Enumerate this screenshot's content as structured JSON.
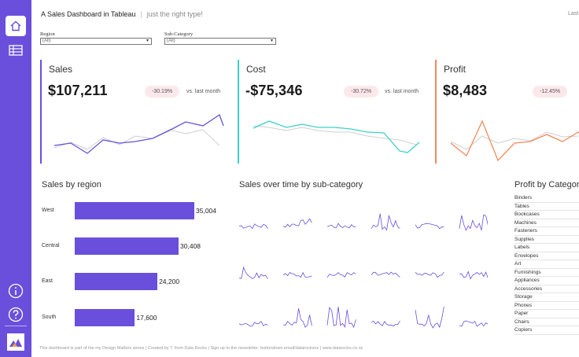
{
  "header": {
    "title": "A Sales Dashboard in Tableau",
    "separator": "|",
    "subtitle": "just the right type!",
    "last_updated": "Last"
  },
  "sidebar": {
    "items": [
      {
        "icon": "home-icon",
        "active": true
      },
      {
        "icon": "table-icon",
        "active": false
      },
      {
        "icon": "info-icon",
        "active": false
      },
      {
        "icon": "help-icon",
        "active": false
      },
      {
        "icon": "data-rocks-logo",
        "active": false
      }
    ]
  },
  "filters": {
    "region": {
      "label": "Region",
      "value": "(All)"
    },
    "subcategory": {
      "label": "Sub-Category",
      "value": "(All)"
    }
  },
  "kpis": {
    "sales": {
      "title": "Sales",
      "value": "$107,211",
      "change": "-30.19%",
      "vs_label": "vs. last month",
      "color": "#6a4fdc"
    },
    "cost": {
      "title": "Cost",
      "value": "-$75,346",
      "change": "-30.72%",
      "vs_label": "vs. last month",
      "color": "#3fd0c9"
    },
    "profit": {
      "title": "Profit",
      "value": "$8,483",
      "change": "-12.45%",
      "vs_label": "",
      "color": "#f08a5d"
    }
  },
  "sections": {
    "sales_by_region": "Sales by region",
    "sales_over_time": "Sales over time by sub-category",
    "profit_by_category": "Profit by Categor"
  },
  "chart_data": {
    "type": "bar",
    "orientation": "horizontal",
    "categories": [
      "West",
      "Central",
      "East",
      "South"
    ],
    "values": [
      35004,
      30408,
      24200,
      17600
    ],
    "value_labels": [
      "35,004",
      "30,408",
      "24,200",
      "17,600"
    ],
    "title": "Sales by region",
    "color": "#6a4fdc"
  },
  "profit_categories": [
    "Binders",
    "Tables",
    "Bookcases",
    "Machines",
    "Fasteners",
    "Supplies",
    "Labels",
    "Envelopes",
    "Art",
    "Furnishings",
    "Appliances",
    "Accessories",
    "Storage",
    "Phones",
    "Paper",
    "Chairs",
    "Copiers"
  ],
  "footer": "This dashboard is part of the my Design Matters series | Created by T. from Data Rocks | Sign up to the newsletter: buttondown.email/datarocksnz | www.datarocks.co.nz"
}
